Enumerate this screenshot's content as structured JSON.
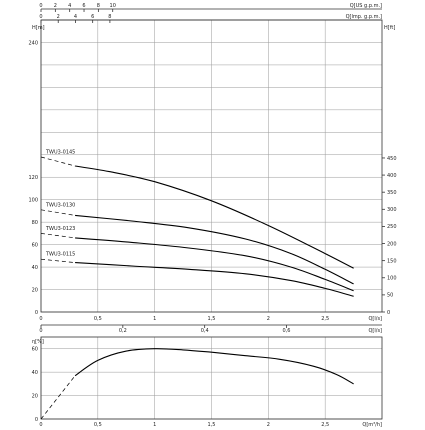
{
  "chart_data": [
    {
      "type": "line",
      "title": "",
      "xlabel": "Q[l/s]",
      "xlim": [
        0,
        3
      ],
      "x_ticks": [
        "0",
        "0,5",
        "1",
        "1,5",
        "2",
        "2,5"
      ],
      "ylabel": "H[m]",
      "ylim": [
        0,
        260
      ],
      "y_ticks": [
        "0",
        "20",
        "40",
        "60",
        "80",
        "100",
        "120",
        "240"
      ],
      "grid": true,
      "secondary_axes": {
        "top_1": {
          "label": "Q[US g.p.m.]",
          "ticks": [
            "0",
            "2",
            "4",
            "6",
            "8",
            "10"
          ]
        },
        "top_2": {
          "label": "Q[lmp. g.p.m.]",
          "ticks": [
            "0",
            "2",
            "4",
            "6",
            "8"
          ]
        },
        "bottom_2": {
          "label": "Q[l/s]",
          "ticks": [
            "0",
            "0,2",
            "0,4",
            "0,6"
          ]
        },
        "right": {
          "label": "H[ft]",
          "ticks": [
            "0",
            "50",
            "100",
            "150",
            "200",
            "250",
            "300",
            "350",
            "400",
            "450"
          ]
        }
      },
      "series": [
        {
          "name": "TWU3-0145",
          "dashed_x": [
            0,
            0.3
          ],
          "dashed_y": [
            138,
            130
          ],
          "x": [
            0.3,
            0.6,
            1.0,
            1.5,
            2.0,
            2.5,
            2.75
          ],
          "y": [
            130,
            125,
            116,
            99,
            77,
            52,
            39
          ]
        },
        {
          "name": "TWU3-0130",
          "dashed_x": [
            0,
            0.3
          ],
          "dashed_y": [
            91,
            86
          ],
          "x": [
            0.3,
            0.8,
            1.3,
            1.8,
            2.2,
            2.5,
            2.75
          ],
          "y": [
            86,
            81,
            75,
            65,
            52,
            38,
            25
          ]
        },
        {
          "name": "TWU3-0123",
          "dashed_x": [
            0,
            0.3
          ],
          "dashed_y": [
            70,
            66
          ],
          "x": [
            0.3,
            0.8,
            1.3,
            1.8,
            2.2,
            2.5,
            2.75
          ],
          "y": [
            66,
            62,
            57,
            50,
            40,
            29,
            19
          ]
        },
        {
          "name": "TWU3-0115",
          "dashed_x": [
            0,
            0.3
          ],
          "dashed_y": [
            47,
            44
          ],
          "x": [
            0.3,
            0.8,
            1.3,
            1.8,
            2.2,
            2.5,
            2.75
          ],
          "y": [
            44,
            41,
            38,
            34,
            28,
            21,
            14
          ]
        }
      ]
    },
    {
      "type": "line",
      "title": "",
      "xlabel": "Q[m³/h]",
      "xlim": [
        0,
        3
      ],
      "x_ticks": [
        "0",
        "0,5",
        "1",
        "1,5",
        "2",
        "2,5"
      ],
      "ylabel": "η[%]",
      "ylim": [
        0,
        70
      ],
      "y_ticks": [
        "0",
        "20",
        "40",
        "60"
      ],
      "grid": true,
      "series": [
        {
          "name": "",
          "dashed_x": [
            0,
            0.3
          ],
          "dashed_y": [
            0,
            37
          ],
          "x": [
            0.3,
            0.5,
            0.75,
            1.0,
            1.25,
            1.5,
            1.8,
            2.1,
            2.4,
            2.6,
            2.75
          ],
          "y": [
            37,
            50,
            58,
            60,
            59,
            57,
            54,
            51,
            45,
            38,
            30
          ]
        }
      ]
    }
  ]
}
